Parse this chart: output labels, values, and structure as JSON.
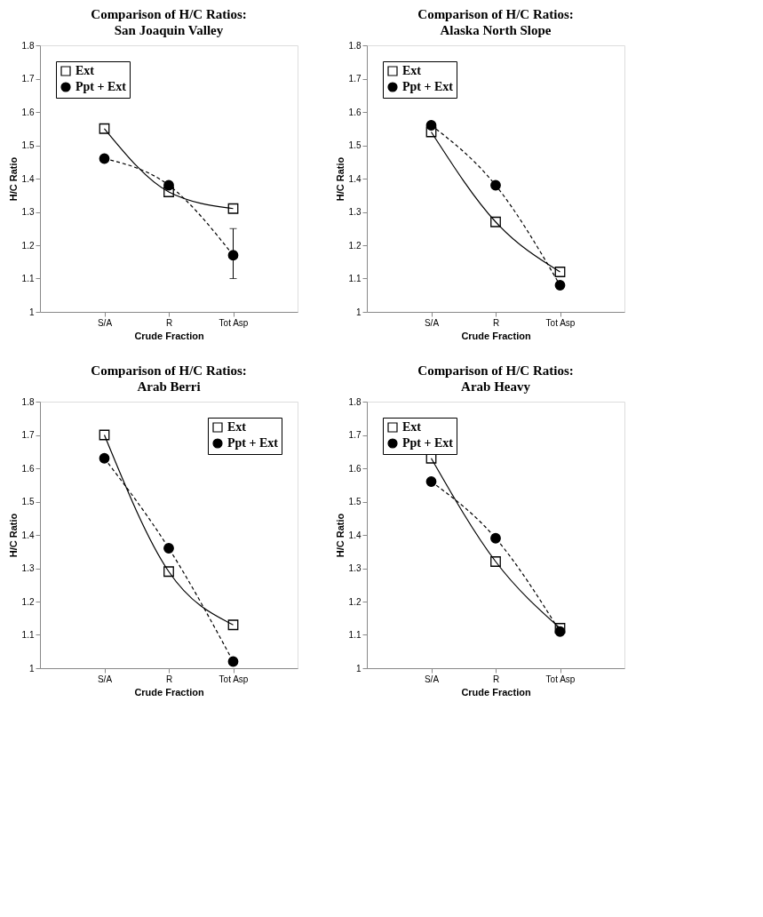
{
  "chart_data": [
    {
      "type": "line",
      "title": "Comparison of H/C Ratios:",
      "subtitle": "San Joaquin Valley",
      "xlabel": "Crude Fraction",
      "ylabel": "H/C Ratio",
      "categories": [
        "S/A",
        "R",
        "Tot Asp"
      ],
      "ylim": [
        1,
        1.8
      ],
      "yticks": [
        1,
        1.1,
        1.2,
        1.3,
        1.4,
        1.5,
        1.6,
        1.7,
        1.8
      ],
      "grid": false,
      "legend": "top left",
      "series": [
        {
          "name": "Ext",
          "color": "#000000",
          "marker": "square",
          "line_style": "solid",
          "values": [
            1.55,
            1.36,
            1.31
          ]
        },
        {
          "name": "Ppt + Ext",
          "color": "#000000",
          "marker": "circle",
          "line_style": "dashed",
          "values": [
            1.46,
            1.38,
            1.17
          ],
          "errors": [
            null,
            null,
            [
              1.1,
              1.25
            ]
          ]
        }
      ]
    },
    {
      "type": "line",
      "title": "Comparison of H/C Ratios:",
      "subtitle": "Alaska North Slope",
      "xlabel": "Crude Fraction",
      "ylabel": "H/C Ratio",
      "categories": [
        "S/A",
        "R",
        "Tot Asp"
      ],
      "ylim": [
        1,
        1.8
      ],
      "yticks": [
        1,
        1.1,
        1.2,
        1.3,
        1.4,
        1.5,
        1.6,
        1.7,
        1.8
      ],
      "grid": false,
      "legend": "top left",
      "series": [
        {
          "name": "Ext",
          "color": "#000000",
          "marker": "square",
          "line_style": "solid",
          "values": [
            1.54,
            1.27,
            1.12
          ]
        },
        {
          "name": "Ppt + Ext",
          "color": "#000000",
          "marker": "circle",
          "line_style": "dashed",
          "values": [
            1.56,
            1.38,
            1.08
          ]
        }
      ]
    },
    {
      "type": "line",
      "title": "Comparison of H/C Ratios:",
      "subtitle": "Arab Berri",
      "xlabel": "Crude Fraction",
      "ylabel": "H/C Ratio",
      "categories": [
        "S/A",
        "R",
        "Tot Asp"
      ],
      "ylim": [
        1,
        1.8
      ],
      "yticks": [
        1,
        1.1,
        1.2,
        1.3,
        1.4,
        1.5,
        1.6,
        1.7,
        1.8
      ],
      "grid": false,
      "legend": "top right",
      "series": [
        {
          "name": "Ext",
          "color": "#000000",
          "marker": "square",
          "line_style": "solid",
          "values": [
            1.7,
            1.29,
            1.13
          ]
        },
        {
          "name": "Ppt + Ext",
          "color": "#000000",
          "marker": "circle",
          "line_style": "dashed",
          "values": [
            1.63,
            1.36,
            1.02
          ]
        }
      ]
    },
    {
      "type": "line",
      "title": "Comparison of H/C Ratios:",
      "subtitle": "Arab Heavy",
      "xlabel": "Crude Fraction",
      "ylabel": "H/C Ratio",
      "categories": [
        "S/A",
        "R",
        "Tot Asp"
      ],
      "ylim": [
        1,
        1.8
      ],
      "yticks": [
        1,
        1.1,
        1.2,
        1.3,
        1.4,
        1.5,
        1.6,
        1.7,
        1.8
      ],
      "grid": false,
      "legend": "top left",
      "series": [
        {
          "name": "Ext",
          "color": "#000000",
          "marker": "square",
          "line_style": "solid",
          "values": [
            1.63,
            1.32,
            1.12
          ]
        },
        {
          "name": "Ppt + Ext",
          "color": "#000000",
          "marker": "circle",
          "line_style": "dashed",
          "values": [
            1.56,
            1.39,
            1.11
          ]
        }
      ]
    }
  ]
}
